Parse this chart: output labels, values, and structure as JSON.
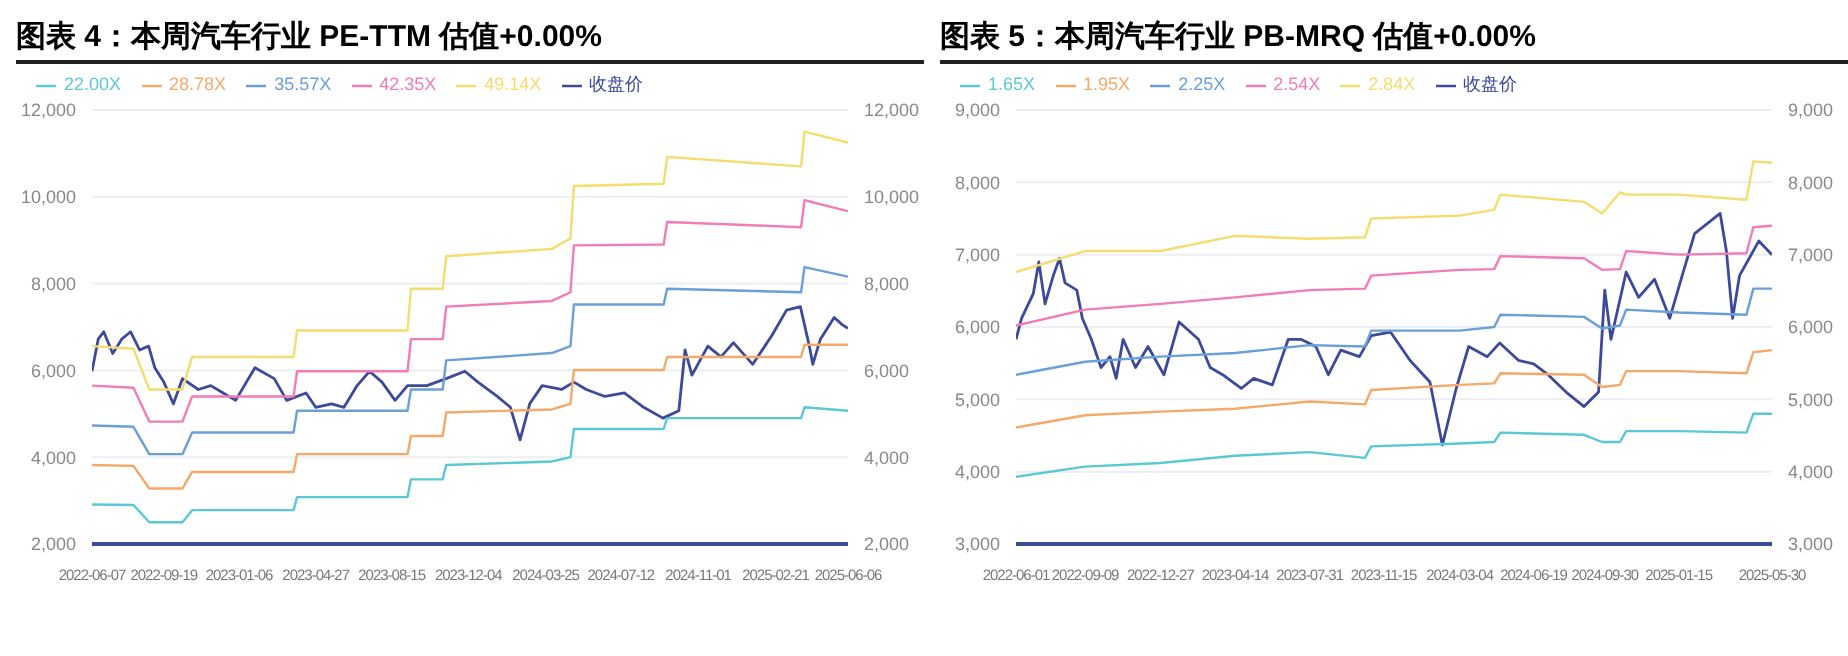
{
  "chart_data": [
    {
      "type": "line",
      "title": "图表 4：本周汽车行业 PE-TTM 估值+0.00%",
      "legend": "top left",
      "grid": "y",
      "marker": "none",
      "line_style": "solid",
      "xlim": [
        "2022-06-07",
        "2025-06-06"
      ],
      "xticks": [
        "2022-06-07",
        "2022-09-19",
        "2023-01-06",
        "2023-04-27",
        "2023-08-15",
        "2023-12-04",
        "2024-03-25",
        "2024-07-12",
        "2024-11-01",
        "2025-02-21",
        "2025-06-06"
      ],
      "ylim": [
        2000,
        12000
      ],
      "yticks": [
        {
          "value": 2000,
          "label": "2,000"
        },
        {
          "value": 4000,
          "label": "4,000"
        },
        {
          "value": 6000,
          "label": "6,000"
        },
        {
          "value": 8000,
          "label": "8,000"
        },
        {
          "value": 10000,
          "label": "10,000"
        },
        {
          "value": 12000,
          "label": "12,000"
        }
      ],
      "y2lim": [
        2000,
        12000
      ],
      "y2ticks": [
        {
          "value": 2000,
          "label": "2,000"
        },
        {
          "value": 4000,
          "label": "4,000"
        },
        {
          "value": 6000,
          "label": "6,000"
        },
        {
          "value": 8000,
          "label": "8,000"
        },
        {
          "value": 10000,
          "label": "10,000"
        },
        {
          "value": 12000,
          "label": "12,000"
        }
      ],
      "series": [
        {
          "name": "收盘价",
          "color": "#3d4a9a",
          "x": [
            "2022-06-07",
            "2022-06-16",
            "2022-06-24",
            "2022-07-07",
            "2022-07-20",
            "2022-08-02",
            "2022-08-15",
            "2022-08-28",
            "2022-09-06",
            "2022-09-19",
            "2022-10-03",
            "2022-10-16",
            "2022-11-08",
            "2022-11-26",
            "2022-12-14",
            "2023-01-01",
            "2023-01-29",
            "2023-02-26",
            "2023-03-16",
            "2023-04-13",
            "2023-04-27",
            "2023-05-20",
            "2023-06-07",
            "2023-06-26",
            "2023-07-14",
            "2023-08-01",
            "2023-08-20",
            "2023-09-07",
            "2023-10-05",
            "2023-11-02",
            "2023-11-29",
            "2023-12-18",
            "2024-01-15",
            "2024-02-03",
            "2024-02-17",
            "2024-03-02",
            "2024-03-20",
            "2024-04-17",
            "2024-05-05",
            "2024-05-23",
            "2024-06-19",
            "2024-07-17",
            "2024-08-14",
            "2024-09-11",
            "2024-10-04",
            "2024-10-13",
            "2024-10-23",
            "2024-11-15",
            "2024-12-04",
            "2024-12-22",
            "2025-01-19",
            "2025-02-16",
            "2025-03-09",
            "2025-03-29",
            "2025-04-11",
            "2025-04-16",
            "2025-04-27",
            "2025-05-17",
            "2025-05-29",
            "2025-06-06"
          ],
          "values": [
            5980,
            6720,
            6890,
            6390,
            6720,
            6890,
            6470,
            6560,
            6060,
            5730,
            5230,
            5810,
            5560,
            5650,
            5480,
            5310,
            6060,
            5810,
            5310,
            5480,
            5150,
            5230,
            5150,
            5650,
            5980,
            5730,
            5310,
            5650,
            5650,
            5810,
            5980,
            5730,
            5400,
            5150,
            4400,
            5230,
            5650,
            5560,
            5730,
            5560,
            5400,
            5480,
            5150,
            4900,
            5070,
            6470,
            5890,
            6560,
            6310,
            6640,
            6140,
            6810,
            7390,
            7470,
            6560,
            6140,
            6720,
            7220,
            7050,
            6970
          ]
        },
        {
          "name": "22.00X",
          "color": "#5bc8d4",
          "x": [
            "2022-06-07",
            "2022-08-06",
            "2022-08-29",
            "2022-10-16",
            "2022-10-30",
            "2023-03-26",
            "2023-03-31",
            "2023-09-07",
            "2023-09-12",
            "2023-10-28",
            "2023-11-02",
            "2024-04-03",
            "2024-04-30",
            "2024-05-05",
            "2024-09-12",
            "2024-09-17",
            "2025-03-30",
            "2025-04-04",
            "2025-06-06"
          ],
          "values": [
            2910,
            2900,
            2500,
            2500,
            2780,
            2780,
            3080,
            3080,
            3490,
            3490,
            3820,
            3900,
            4000,
            4650,
            4650,
            4900,
            4900,
            5150,
            5070
          ]
        },
        {
          "name": "28.78X",
          "color": "#f5a968",
          "x": [
            "2022-06-07",
            "2022-08-06",
            "2022-08-29",
            "2022-10-16",
            "2022-10-30",
            "2023-03-26",
            "2023-03-31",
            "2023-09-07",
            "2023-09-12",
            "2023-10-28",
            "2023-11-02",
            "2024-04-03",
            "2024-04-30",
            "2024-05-05",
            "2024-09-12",
            "2024-09-17",
            "2025-03-30",
            "2025-04-04",
            "2025-06-06"
          ],
          "values": [
            3820,
            3800,
            3280,
            3280,
            3660,
            3660,
            4070,
            4070,
            4490,
            4490,
            5030,
            5100,
            5230,
            6010,
            6010,
            6310,
            6310,
            6590,
            6590
          ]
        },
        {
          "name": "35.57X",
          "color": "#6a9fd8",
          "x": [
            "2022-06-07",
            "2022-08-06",
            "2022-08-29",
            "2022-10-16",
            "2022-10-30",
            "2023-03-26",
            "2023-03-31",
            "2023-09-07",
            "2023-09-12",
            "2023-10-28",
            "2023-11-02",
            "2024-04-03",
            "2024-04-30",
            "2024-05-05",
            "2024-09-12",
            "2024-09-17",
            "2025-03-30",
            "2025-04-04",
            "2025-06-06"
          ],
          "values": [
            4730,
            4700,
            4070,
            4070,
            4570,
            4570,
            5070,
            5070,
            5560,
            5560,
            6230,
            6400,
            6560,
            7520,
            7520,
            7880,
            7800,
            8380,
            8160
          ]
        },
        {
          "name": "42.35X",
          "color": "#f07cb8",
          "x": [
            "2022-06-07",
            "2022-08-06",
            "2022-08-29",
            "2022-10-16",
            "2022-10-30",
            "2023-03-26",
            "2023-03-31",
            "2023-09-07",
            "2023-09-12",
            "2023-10-28",
            "2023-11-02",
            "2024-04-03",
            "2024-04-30",
            "2024-05-05",
            "2024-09-12",
            "2024-09-17",
            "2025-03-30",
            "2025-04-04",
            "2025-06-06"
          ],
          "values": [
            5650,
            5600,
            4820,
            4820,
            5400,
            5400,
            5980,
            5980,
            6720,
            6720,
            7470,
            7600,
            7800,
            8880,
            8900,
            9420,
            9300,
            9920,
            9670
          ]
        },
        {
          "name": "49.14X",
          "color": "#f5dc6e",
          "x": [
            "2022-06-07",
            "2022-08-06",
            "2022-08-29",
            "2022-10-16",
            "2022-10-30",
            "2023-03-26",
            "2023-03-31",
            "2023-09-07",
            "2023-09-12",
            "2023-10-28",
            "2023-11-02",
            "2024-04-03",
            "2024-04-30",
            "2024-05-05",
            "2024-09-12",
            "2024-09-17",
            "2025-03-30",
            "2025-04-04",
            "2025-06-06"
          ],
          "values": [
            6560,
            6500,
            5560,
            5560,
            6310,
            6310,
            6920,
            6920,
            7880,
            7880,
            8630,
            8800,
            9040,
            10250,
            10300,
            10920,
            10700,
            11500,
            11250
          ]
        }
      ]
    },
    {
      "type": "line",
      "title": "图表 5：本周汽车行业 PB-MRQ 估值+0.00%",
      "legend": "top left",
      "grid": "y",
      "marker": "none",
      "line_style": "solid",
      "xlim": [
        "2022-06-01",
        "2025-05-30"
      ],
      "xticks": [
        "2022-06-01",
        "2022-09-09",
        "2022-12-27",
        "2023-04-14",
        "2023-07-31",
        "2023-11-15",
        "2024-03-04",
        "2024-06-19",
        "2024-09-30",
        "2025-01-15",
        "2025-05-30"
      ],
      "ylim": [
        3000,
        9000
      ],
      "yticks": [
        {
          "value": 3000,
          "label": "3,000"
        },
        {
          "value": 4000,
          "label": "4,000"
        },
        {
          "value": 5000,
          "label": "5,000"
        },
        {
          "value": 6000,
          "label": "6,000"
        },
        {
          "value": 7000,
          "label": "7,000"
        },
        {
          "value": 8000,
          "label": "8,000"
        },
        {
          "value": 9000,
          "label": "9,000"
        }
      ],
      "y2lim": [
        3000,
        9000
      ],
      "y2ticks": [
        {
          "value": 3000,
          "label": "3,000"
        },
        {
          "value": 4000,
          "label": "4,000"
        },
        {
          "value": 5000,
          "label": "5,000"
        },
        {
          "value": 6000,
          "label": "6,000"
        },
        {
          "value": 7000,
          "label": "7,000"
        },
        {
          "value": 8000,
          "label": "8,000"
        },
        {
          "value": 9000,
          "label": "9,000"
        }
      ],
      "series": [
        {
          "name": "收盘价",
          "color": "#3d4a9a",
          "x": [
            "2022-06-01",
            "2022-06-09",
            "2022-06-26",
            "2022-07-04",
            "2022-07-13",
            "2022-07-25",
            "2022-08-03",
            "2022-08-11",
            "2022-08-28",
            "2022-09-05",
            "2022-09-18",
            "2022-10-02",
            "2022-10-15",
            "2022-10-24",
            "2022-11-03",
            "2022-11-21",
            "2022-12-09",
            "2023-01-01",
            "2023-01-23",
            "2023-02-20",
            "2023-03-09",
            "2023-03-27",
            "2023-04-23",
            "2023-05-11",
            "2023-06-07",
            "2023-06-30",
            "2023-07-18",
            "2023-08-09",
            "2023-08-27",
            "2023-09-14",
            "2023-10-11",
            "2023-10-28",
            "2023-11-25",
            "2023-12-23",
            "2024-01-21",
            "2024-02-08",
            "2024-02-28",
            "2024-03-17",
            "2024-04-13",
            "2024-05-01",
            "2024-05-28",
            "2024-06-19",
            "2024-07-10",
            "2024-08-05",
            "2024-08-31",
            "2024-09-21",
            "2024-09-30",
            "2024-10-09",
            "2024-10-31",
            "2024-11-18",
            "2024-12-11",
            "2025-01-02",
            "2025-01-20",
            "2025-02-07",
            "2025-03-16",
            "2025-03-25",
            "2025-04-03",
            "2025-04-13",
            "2025-05-11",
            "2025-05-30"
          ],
          "values": [
            5830,
            6120,
            6460,
            6900,
            6320,
            6710,
            6950,
            6610,
            6510,
            6120,
            5830,
            5440,
            5590,
            5290,
            5830,
            5440,
            5730,
            5340,
            6070,
            5830,
            5440,
            5340,
            5150,
            5290,
            5200,
            5830,
            5830,
            5730,
            5340,
            5680,
            5590,
            5880,
            5930,
            5540,
            5240,
            4370,
            5150,
            5730,
            5590,
            5780,
            5540,
            5490,
            5340,
            5100,
            4900,
            5100,
            6510,
            5830,
            6760,
            6410,
            6660,
            6120,
            6710,
            7290,
            7570,
            7050,
            6120,
            6710,
            7190,
            7000
          ]
        },
        {
          "name": "1.65X",
          "color": "#5bc8d4",
          "x": [
            "2022-06-01",
            "2022-09-09",
            "2022-12-27",
            "2023-04-14",
            "2023-07-31",
            "2023-10-19",
            "2023-10-28",
            "2024-03-04",
            "2024-04-23",
            "2024-05-02",
            "2024-08-31",
            "2024-09-26",
            "2024-10-22",
            "2024-10-31",
            "2025-01-15",
            "2025-04-23",
            "2025-05-03",
            "2025-05-30"
          ],
          "values": [
            3930,
            4070,
            4120,
            4220,
            4270,
            4190,
            4350,
            4390,
            4410,
            4540,
            4510,
            4410,
            4410,
            4560,
            4560,
            4540,
            4800,
            4800
          ]
        },
        {
          "name": "1.95X",
          "color": "#f5a968",
          "x": [
            "2022-06-01",
            "2022-09-09",
            "2022-12-27",
            "2023-04-14",
            "2023-07-31",
            "2023-10-19",
            "2023-10-28",
            "2024-03-04",
            "2024-04-23",
            "2024-05-02",
            "2024-08-31",
            "2024-09-26",
            "2024-10-22",
            "2024-10-31",
            "2025-01-15",
            "2025-04-23",
            "2025-05-03",
            "2025-05-30"
          ],
          "values": [
            4610,
            4780,
            4830,
            4870,
            4970,
            4930,
            5130,
            5200,
            5220,
            5360,
            5340,
            5170,
            5200,
            5390,
            5390,
            5360,
            5650,
            5680
          ]
        },
        {
          "name": "2.25X",
          "color": "#6a9fd8",
          "x": [
            "2022-06-01",
            "2022-09-09",
            "2022-12-27",
            "2023-04-14",
            "2023-07-31",
            "2023-10-19",
            "2023-10-28",
            "2024-03-04",
            "2024-04-23",
            "2024-05-02",
            "2024-08-31",
            "2024-09-26",
            "2024-10-22",
            "2024-10-31",
            "2025-01-15",
            "2025-04-23",
            "2025-05-03",
            "2025-05-30"
          ],
          "values": [
            5340,
            5520,
            5590,
            5640,
            5750,
            5730,
            5950,
            5950,
            6000,
            6170,
            6140,
            5980,
            6020,
            6240,
            6200,
            6170,
            6530,
            6530
          ]
        },
        {
          "name": "2.54X",
          "color": "#f07cb8",
          "x": [
            "2022-06-01",
            "2022-09-09",
            "2022-12-27",
            "2023-04-14",
            "2023-07-31",
            "2023-10-19",
            "2023-10-28",
            "2024-03-04",
            "2024-04-23",
            "2024-05-02",
            "2024-08-31",
            "2024-09-26",
            "2024-10-22",
            "2024-10-31",
            "2025-01-15",
            "2025-04-23",
            "2025-05-03",
            "2025-05-30"
          ],
          "values": [
            6020,
            6240,
            6320,
            6410,
            6510,
            6530,
            6710,
            6790,
            6800,
            6980,
            6950,
            6790,
            6800,
            7050,
            7000,
            7020,
            7380,
            7400
          ]
        },
        {
          "name": "2.84X",
          "color": "#f5dc6e",
          "x": [
            "2022-06-01",
            "2022-09-09",
            "2022-12-27",
            "2023-04-14",
            "2023-07-31",
            "2023-10-19",
            "2023-10-28",
            "2024-03-04",
            "2024-04-23",
            "2024-05-02",
            "2024-08-31",
            "2024-09-26",
            "2024-10-22",
            "2024-10-31",
            "2025-01-15",
            "2025-04-23",
            "2025-05-03",
            "2025-05-30"
          ],
          "values": [
            6760,
            7050,
            7050,
            7260,
            7220,
            7240,
            7500,
            7540,
            7620,
            7830,
            7730,
            7570,
            7860,
            7830,
            7830,
            7760,
            8290,
            8270
          ]
        }
      ]
    }
  ]
}
